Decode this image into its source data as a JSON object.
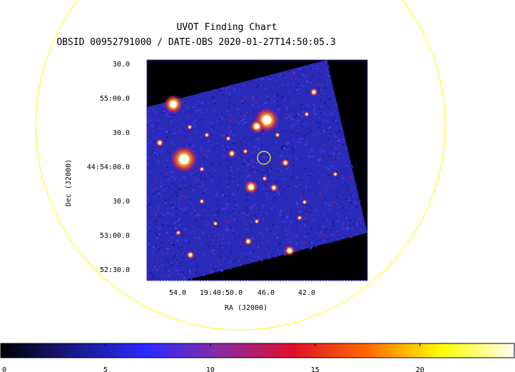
{
  "chart_data": {
    "type": "heatmap",
    "title": "UVOT Finding Chart",
    "subtitle": "OBSID 00952791000 / DATE-OBS 2020-01-27T14:50:05.3",
    "xlabel": "RA (J2000)",
    "ylabel": "Dec (J2000)",
    "x_ticks": [
      "54.0",
      "19:40:50.0",
      "46.0",
      "42.0"
    ],
    "y_ticks": [
      "30.0",
      "55:00.0",
      "30.0",
      "44:54:00.0",
      "30.0",
      "53:00.0",
      "52:30.0"
    ],
    "colorbar": {
      "ticks": [
        "0",
        "5",
        "10",
        "15",
        "20"
      ],
      "range": [
        0,
        24.5
      ],
      "colormap": [
        "#000000",
        "#1a1a8c",
        "#2a2aff",
        "#8a2aa0",
        "#e0102a",
        "#ff6a00",
        "#ffff00",
        "#fffff0"
      ]
    },
    "colors": {
      "background_field": "#2a2ab8",
      "outside": "#000000",
      "frame": "#3030c0",
      "circle": "#ffff00"
    }
  }
}
